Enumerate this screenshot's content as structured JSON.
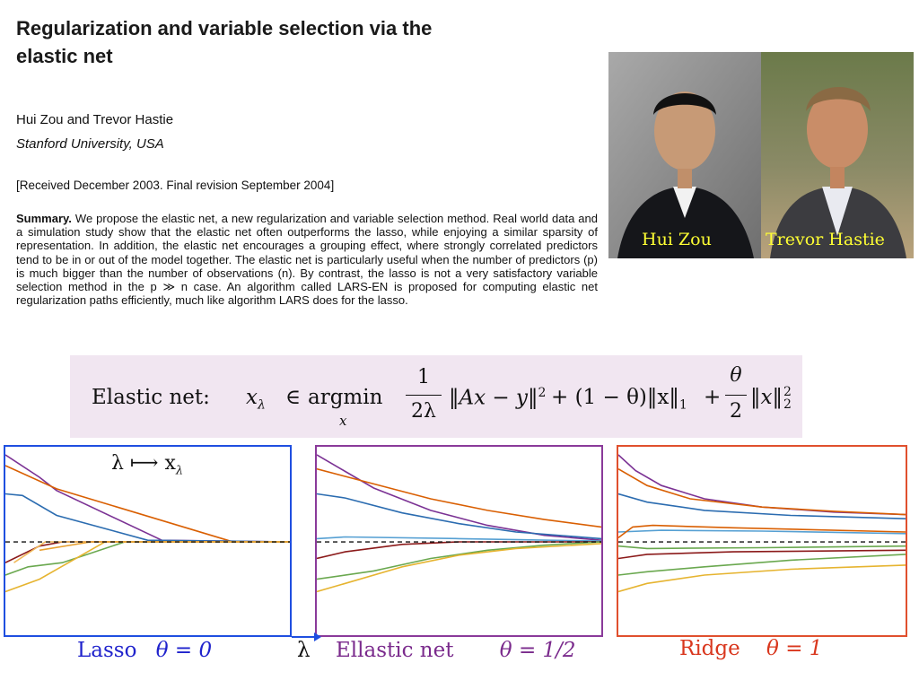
{
  "paper": {
    "title_line1": "Regularization and variable selection via the",
    "title_line2": "elastic net",
    "authors": "Hui Zou and Trevor Hastie",
    "affiliation": "Stanford University, USA",
    "received": "[Received December 2003. Final revision September 2004]",
    "summary_heading": "Summary.",
    "summary_lines": [
      "We propose the elastic net, a new regularization and variable selection method. Real",
      "world data and a simulation study show that the elastic net often outperforms the lasso, while",
      "enjoying a similar sparsity of representation. In addition, the elastic net encourages a grouping",
      "effect, where strongly correlated predictors tend to be in or out of the model together. The elastic",
      "net is particularly useful when the number of predictors (p) is much bigger than the number of",
      "observations (n). By contrast, the lasso is not a very satisfactory variable selection method in the",
      "p ≫ n case. An algorithm called LARS-EN is proposed for computing elastic net regularization",
      "paths efficiently, much like algorithm LARS does for the lasso."
    ]
  },
  "photo": {
    "caption_left": "Hui Zou",
    "caption_right": "Trevor  Hastie"
  },
  "equation": {
    "label": "Elastic net:",
    "lhs": "x",
    "sub": "λ",
    "in": "∈",
    "argmin": "argmin",
    "argmin_sub": "x",
    "frac1_num": "1",
    "frac1_den": "2λ",
    "term1": "‖Ax − y‖",
    "term1_sup": "2",
    "term2": "+ (1 − θ)‖x‖",
    "term2_sub": "1",
    "plus": "+",
    "frac2_num": "θ",
    "frac2_den": "2",
    "term3": "‖x‖",
    "term3_sub": "2",
    "term3_sup": "2"
  },
  "panels": {
    "lasso_annotation": "λ ⟼ x",
    "lasso_annotation_sub": "λ",
    "axis_lambda": "λ",
    "labels": [
      {
        "name": "Lasso",
        "theta": "θ = 0",
        "color": "#1f22cc"
      },
      {
        "name": "Ellastic net",
        "theta": "θ = 1/2",
        "color": "#7a2a8c"
      },
      {
        "name": "Ridge",
        "theta": "θ = 1",
        "color": "#d9371e"
      }
    ],
    "border_colors": [
      "#1f4fe0",
      "#8a3a9a",
      "#e0502e"
    ]
  },
  "chart_data": [
    {
      "type": "line",
      "title": "Lasso",
      "x_domain": [
        0,
        1
      ],
      "y_domain": [
        -1,
        1
      ],
      "series": [
        {
          "color": "#7b3294",
          "points": [
            [
              0,
              1.05
            ],
            [
              0.12,
              0.78
            ],
            [
              0.18,
              0.62
            ],
            [
              0.55,
              0.02
            ],
            [
              1,
              0
            ]
          ]
        },
        {
          "color": "#d95f02",
          "points": [
            [
              0,
              0.92
            ],
            [
              0.18,
              0.64
            ],
            [
              0.8,
              0
            ],
            [
              1,
              0
            ]
          ]
        },
        {
          "color": "#2b6cb0",
          "points": [
            [
              0,
              0.58
            ],
            [
              0.06,
              0.56
            ],
            [
              0.18,
              0.32
            ],
            [
              0.5,
              0.02
            ],
            [
              1,
              0
            ]
          ]
        },
        {
          "color": "#8b1a1a",
          "points": [
            [
              0,
              -0.25
            ],
            [
              0.12,
              -0.05
            ],
            [
              0.2,
              0
            ],
            [
              1,
              0
            ]
          ]
        },
        {
          "color": "#6aa84f",
          "points": [
            [
              0,
              -0.4
            ],
            [
              0.08,
              -0.3
            ],
            [
              0.2,
              -0.25
            ],
            [
              0.42,
              0
            ],
            [
              1,
              0
            ]
          ]
        },
        {
          "color": "#e6b430",
          "points": [
            [
              0,
              -0.6
            ],
            [
              0.12,
              -0.45
            ],
            [
              0.35,
              0
            ],
            [
              1,
              0
            ]
          ]
        },
        {
          "color": "#f0b95a",
          "points": [
            [
              0.03,
              -0.25
            ],
            [
              0.14,
              0
            ],
            [
              1,
              0
            ]
          ]
        },
        {
          "color": "#e8a030",
          "points": [
            [
              0.12,
              -0.1
            ],
            [
              0.3,
              0
            ],
            [
              1,
              0
            ]
          ]
        }
      ],
      "zero_line": 0
    },
    {
      "type": "line",
      "title": "Ellastic net",
      "x_domain": [
        0,
        1
      ],
      "y_domain": [
        -1,
        1
      ],
      "series": [
        {
          "color": "#7b3294",
          "points": [
            [
              0,
              1.05
            ],
            [
              0.1,
              0.85
            ],
            [
              0.2,
              0.65
            ],
            [
              0.4,
              0.38
            ],
            [
              0.6,
              0.2
            ],
            [
              0.8,
              0.08
            ],
            [
              1,
              0.02
            ]
          ]
        },
        {
          "color": "#d95f02",
          "points": [
            [
              0,
              0.88
            ],
            [
              0.2,
              0.7
            ],
            [
              0.4,
              0.52
            ],
            [
              0.6,
              0.38
            ],
            [
              0.8,
              0.27
            ],
            [
              1,
              0.18
            ]
          ]
        },
        {
          "color": "#2b6cb0",
          "points": [
            [
              0,
              0.58
            ],
            [
              0.1,
              0.53
            ],
            [
              0.3,
              0.35
            ],
            [
              0.5,
              0.22
            ],
            [
              0.7,
              0.12
            ],
            [
              1,
              0.04
            ]
          ]
        },
        {
          "color": "#56a0d3",
          "points": [
            [
              0,
              0.04
            ],
            [
              0.1,
              0.06
            ],
            [
              0.5,
              0.04
            ],
            [
              1,
              0.01
            ]
          ]
        },
        {
          "color": "#8b1a1a",
          "points": [
            [
              0,
              -0.2
            ],
            [
              0.1,
              -0.12
            ],
            [
              0.3,
              -0.03
            ],
            [
              0.5,
              0
            ],
            [
              1,
              0
            ]
          ]
        },
        {
          "color": "#6aa84f",
          "points": [
            [
              0,
              -0.45
            ],
            [
              0.2,
              -0.35
            ],
            [
              0.4,
              -0.2
            ],
            [
              0.6,
              -0.1
            ],
            [
              0.8,
              -0.04
            ],
            [
              1,
              0
            ]
          ]
        },
        {
          "color": "#e6b430",
          "points": [
            [
              0,
              -0.6
            ],
            [
              0.1,
              -0.5
            ],
            [
              0.3,
              -0.3
            ],
            [
              0.5,
              -0.16
            ],
            [
              0.7,
              -0.08
            ],
            [
              1,
              -0.02
            ]
          ]
        }
      ],
      "zero_line": 0
    },
    {
      "type": "line",
      "title": "Ridge",
      "x_domain": [
        0,
        1
      ],
      "y_domain": [
        -1,
        1
      ],
      "series": [
        {
          "color": "#7b3294",
          "points": [
            [
              0,
              1.05
            ],
            [
              0.06,
              0.86
            ],
            [
              0.15,
              0.68
            ],
            [
              0.3,
              0.52
            ],
            [
              0.5,
              0.42
            ],
            [
              0.75,
              0.36
            ],
            [
              1,
              0.33
            ]
          ]
        },
        {
          "color": "#d95f02",
          "points": [
            [
              0,
              0.88
            ],
            [
              0.1,
              0.68
            ],
            [
              0.25,
              0.52
            ],
            [
              0.5,
              0.42
            ],
            [
              0.75,
              0.37
            ],
            [
              1,
              0.33
            ]
          ]
        },
        {
          "color": "#2b6cb0",
          "points": [
            [
              0,
              0.58
            ],
            [
              0.1,
              0.48
            ],
            [
              0.3,
              0.38
            ],
            [
              0.6,
              0.32
            ],
            [
              1,
              0.28
            ]
          ]
        },
        {
          "color": "#56a0d3",
          "points": [
            [
              0,
              0.12
            ],
            [
              0.15,
              0.14
            ],
            [
              0.5,
              0.13
            ],
            [
              1,
              0.1
            ]
          ]
        },
        {
          "color": "#d95f02",
          "points": [
            [
              0,
              0.05
            ],
            [
              0.05,
              0.18
            ],
            [
              0.12,
              0.2
            ],
            [
              0.4,
              0.17
            ],
            [
              1,
              0.12
            ]
          ]
        },
        {
          "color": "#6aa84f",
          "points": [
            [
              0,
              -0.05
            ],
            [
              0.1,
              -0.08
            ],
            [
              0.5,
              -0.07
            ],
            [
              1,
              -0.05
            ]
          ]
        },
        {
          "color": "#8b1a1a",
          "points": [
            [
              0,
              -0.2
            ],
            [
              0.1,
              -0.15
            ],
            [
              0.4,
              -0.12
            ],
            [
              1,
              -0.1
            ]
          ]
        },
        {
          "color": "#6aa84f",
          "points": [
            [
              0,
              -0.4
            ],
            [
              0.1,
              -0.36
            ],
            [
              0.3,
              -0.3
            ],
            [
              0.6,
              -0.22
            ],
            [
              1,
              -0.15
            ]
          ]
        },
        {
          "color": "#e6b430",
          "points": [
            [
              0,
              -0.6
            ],
            [
              0.1,
              -0.5
            ],
            [
              0.3,
              -0.4
            ],
            [
              0.6,
              -0.33
            ],
            [
              1,
              -0.28
            ]
          ]
        }
      ],
      "zero_line": 0
    }
  ]
}
